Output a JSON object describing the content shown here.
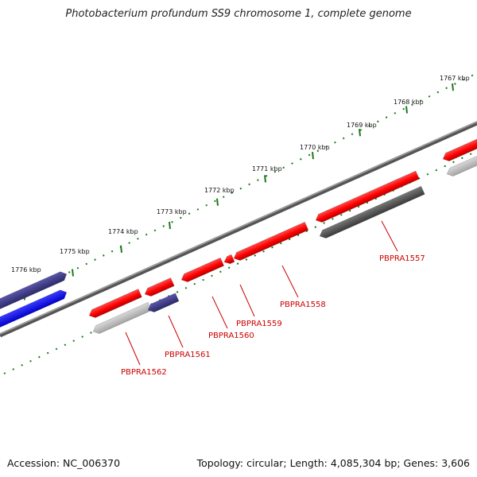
{
  "title": "Photobacterium profundum SS9 chromosome 1, complete genome",
  "footer": {
    "accession": "Accession: NC_006370",
    "summary": "Topology: circular; Length: 4,085,304 bp; Genes: 3,606"
  },
  "ticks": [
    "1767 kbp",
    "1768 kbp",
    "1769 kbp",
    "1770 kbp",
    "1771 kbp",
    "1772 kbp",
    "1773 kbp",
    "1774 kbp",
    "1775 kbp",
    "1776 kbp"
  ],
  "gene_labels": [
    "PBPRA1557",
    "PBPRA1558",
    "PBPRA1559",
    "PBPRA1560",
    "PBPRA1561",
    "PBPRA1562"
  ],
  "colors": {
    "red": "#ff0000",
    "dark_red": "#b80000",
    "blue": "#0000ff",
    "slate": "#3a3680",
    "dark_gray": "#555555",
    "light_gray": "#bcbcbc",
    "backbone": "#808080",
    "tick_green": "#1a7a1a",
    "label_red": "#cc0000"
  }
}
